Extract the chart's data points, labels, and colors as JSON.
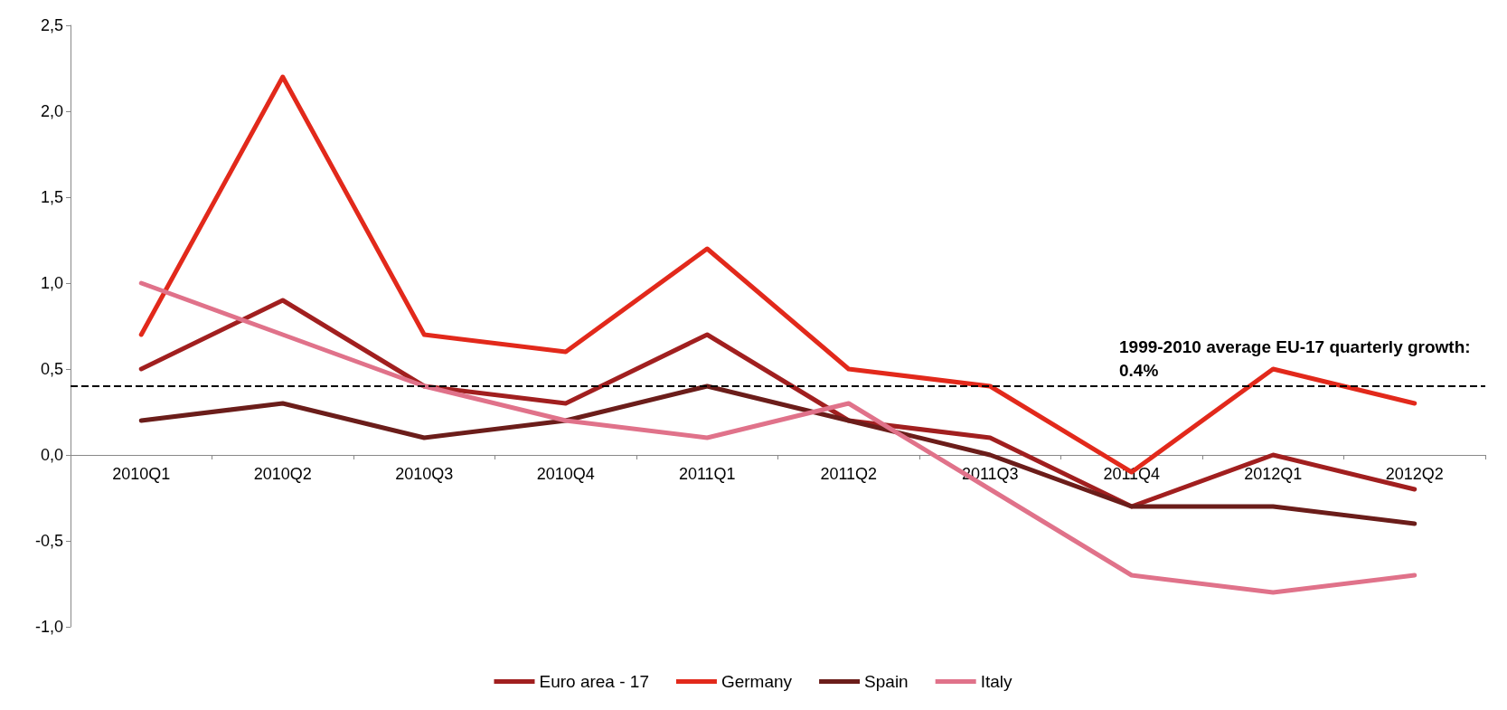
{
  "chart_data": {
    "type": "line",
    "categories": [
      "2010Q1",
      "2010Q2",
      "2010Q3",
      "2010Q4",
      "2011Q1",
      "2011Q2",
      "2011Q3",
      "2011Q4",
      "2012Q1",
      "2012Q2"
    ],
    "series": [
      {
        "name": "Euro area - 17",
        "color": "#a11f1f",
        "values": [
          0.5,
          0.9,
          0.4,
          0.3,
          0.7,
          0.2,
          0.1,
          -0.3,
          0.0,
          -0.2
        ]
      },
      {
        "name": "Germany",
        "color": "#e2291b",
        "values": [
          0.7,
          2.2,
          0.7,
          0.6,
          1.2,
          0.5,
          0.4,
          -0.1,
          0.5,
          0.3
        ]
      },
      {
        "name": "Spain",
        "color": "#6b1d1a",
        "values": [
          0.2,
          0.3,
          0.1,
          0.2,
          0.4,
          0.2,
          0.0,
          -0.3,
          -0.3,
          -0.4
        ]
      },
      {
        "name": "Italy",
        "color": "#e0728a",
        "values": [
          1.0,
          0.7,
          0.4,
          0.2,
          0.1,
          0.3,
          -0.2,
          -0.7,
          -0.8,
          -0.7
        ]
      }
    ],
    "ylim": [
      -1.0,
      2.5
    ],
    "yticks": [
      {
        "value": -1.0,
        "label": "-1,0"
      },
      {
        "value": -0.5,
        "label": "-0,5"
      },
      {
        "value": 0,
        "label": "0,0"
      },
      {
        "value": 0.5,
        "label": "0,5"
      },
      {
        "value": 1.0,
        "label": "1,0"
      },
      {
        "value": 1.5,
        "label": "1,5"
      },
      {
        "value": 2.0,
        "label": "2,0"
      },
      {
        "value": 2.5,
        "label": "2,5"
      }
    ],
    "ref_lines": [
      {
        "axis": "y",
        "value": 0.4,
        "label": "1999-2010 average EU-17 quarterly growth: 0.4%",
        "color": "#000000",
        "line_style": "dashed"
      }
    ],
    "legend": "bottom",
    "marker": "none",
    "line_style": "solid"
  }
}
